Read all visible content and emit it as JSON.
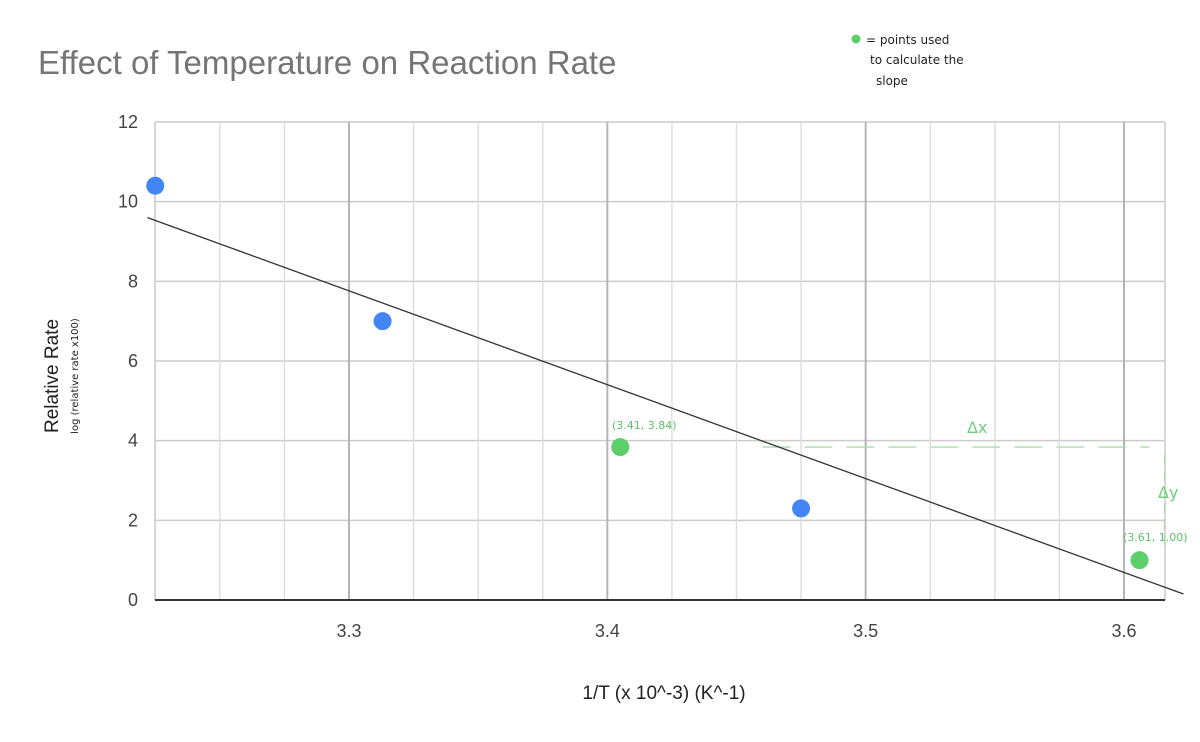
{
  "chart_data": {
    "type": "scatter",
    "title": "Effect of Temperature on Reaction Rate",
    "xlabel": "1/T (x 10^-3) (K^-1)",
    "ylabel": "Relative Rate",
    "ylabel_sub": "log (relative rate x100)",
    "xlim": [
      3.22,
      3.61
    ],
    "ylim": [
      0,
      12
    ],
    "x_ticks": [
      "3.3",
      "3.4",
      "3.5",
      "3.6"
    ],
    "x_tick_values": [
      3.3,
      3.4,
      3.5,
      3.6
    ],
    "y_ticks": [
      "0",
      "2",
      "4",
      "6",
      "8",
      "10",
      "12"
    ],
    "y_tick_values": [
      0,
      2,
      4,
      6,
      8,
      10,
      12
    ],
    "grid": true,
    "points": [
      {
        "x": 3.225,
        "y": 10.4,
        "color": "#4285f4"
      },
      {
        "x": 3.313,
        "y": 7.0,
        "color": "#4285f4"
      },
      {
        "x": 3.405,
        "y": 3.84,
        "color": "#5ccf6a"
      },
      {
        "x": 3.475,
        "y": 2.3,
        "color": "#4285f4"
      },
      {
        "x": 3.606,
        "y": 1.0,
        "color": "#5ccf6a"
      }
    ],
    "trendline": {
      "x": [
        3.222,
        3.623
      ],
      "y": [
        9.6,
        0.15
      ]
    },
    "legend_note": {
      "marker_color": "#5ccf6a",
      "lines": [
        "= points used",
        "to calculate the",
        "slope"
      ]
    },
    "annotations": {
      "point_a": "(3.41, 3.84)",
      "point_b": "(3.61, 1.00)",
      "delta_x": "Δx",
      "delta_y": "Δy"
    }
  }
}
